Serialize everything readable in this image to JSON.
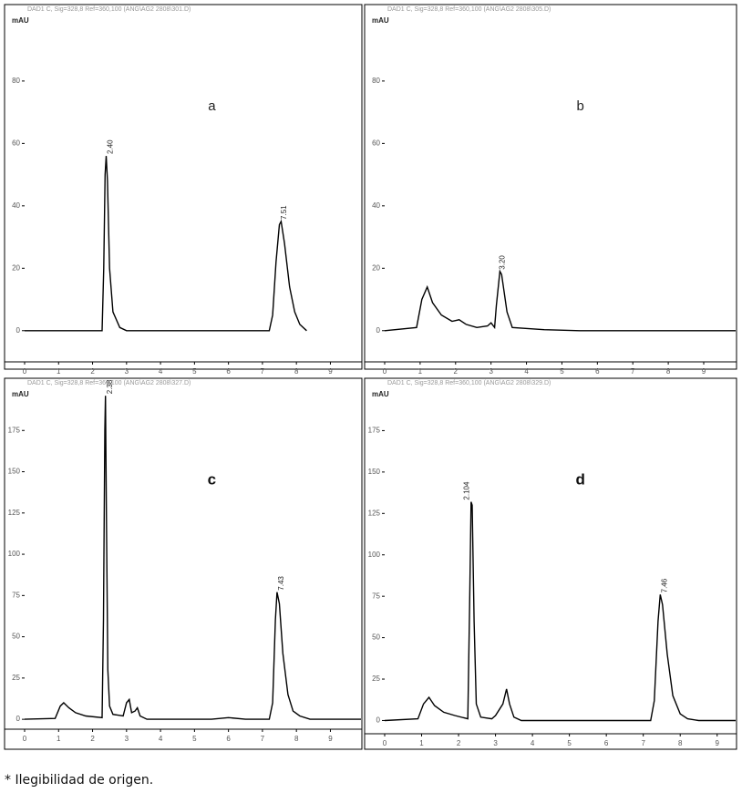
{
  "chart_data": [
    {
      "type": "line",
      "subtitle": "DAD1 C, Sig=328,8 Ref=360,100 (ANG\\AG2 2808\\301.D)",
      "label": "a",
      "ylabel": "mAU",
      "color": "#000000",
      "x": [
        0,
        2.28,
        2.33,
        2.37,
        2.4,
        2.44,
        2.5,
        2.6,
        2.8,
        3.0,
        7.2,
        7.3,
        7.4,
        7.5,
        7.55,
        7.65,
        7.8,
        7.95,
        8.1,
        8.3
      ],
      "values": [
        0,
        0,
        20,
        50,
        56,
        48,
        20,
        6,
        1,
        0,
        0,
        5,
        22,
        34,
        35,
        28,
        14,
        6,
        2,
        0
      ],
      "annotations": [
        {
          "x": 2.4,
          "label": "2.40"
        },
        {
          "x": 7.51,
          "label": "7.51"
        }
      ],
      "xlim": [
        0,
        9.9
      ],
      "ylim": [
        -10,
        101
      ],
      "xticks": [
        0,
        1,
        2,
        3,
        4,
        5,
        6,
        7,
        8,
        9
      ],
      "yticks": [
        0,
        20,
        40,
        60,
        80
      ]
    },
    {
      "type": "line",
      "subtitle": "DAD1 C, Sig=328,8 Ref=360,100 (ANG\\AG2 2808\\305.D)",
      "label": "b",
      "ylabel": "mAU",
      "color": "#000000",
      "x": [
        0,
        0.9,
        1.05,
        1.2,
        1.35,
        1.6,
        1.9,
        2.1,
        2.3,
        2.6,
        2.9,
        3.0,
        3.1,
        3.15,
        3.25,
        3.3,
        3.45,
        3.6,
        4.5,
        5.5,
        6.4,
        9.9
      ],
      "values": [
        0,
        1,
        10,
        14,
        9,
        5,
        3,
        3.5,
        2,
        1,
        1.5,
        2.5,
        1,
        8,
        19,
        18,
        6,
        1,
        0.3,
        0,
        0,
        0
      ],
      "annotations": [
        {
          "x": 3.2,
          "label": "3.20"
        }
      ],
      "xlim": [
        0,
        9.9
      ],
      "ylim": [
        -10,
        101
      ],
      "xticks": [
        0,
        1,
        2,
        3,
        4,
        5,
        6,
        7,
        8,
        9
      ],
      "yticks": [
        0,
        20,
        40,
        60,
        80
      ]
    },
    {
      "type": "line",
      "subtitle": "DAD1 C, Sig=328,8 Ref=360,100 (ANG\\AG2 2808\\327.D)",
      "label": "c",
      "ylabel": "mAU",
      "color": "#000000",
      "bold": true,
      "x": [
        0,
        0.9,
        1.05,
        1.15,
        1.3,
        1.5,
        1.8,
        2.28,
        2.32,
        2.36,
        2.38,
        2.41,
        2.45,
        2.5,
        2.6,
        2.9,
        3.0,
        3.08,
        3.15,
        3.25,
        3.32,
        3.4,
        3.6,
        5.5,
        6,
        6.5,
        7.2,
        7.3,
        7.38,
        7.43,
        7.5,
        7.6,
        7.75,
        7.9,
        8.1,
        8.4,
        9.9
      ],
      "values": [
        0,
        0.5,
        8,
        10,
        7,
        4,
        2,
        1,
        60,
        175,
        196,
        120,
        30,
        8,
        3,
        2,
        10,
        12,
        4,
        5,
        7,
        2,
        0,
        0,
        1,
        0,
        0,
        10,
        60,
        77,
        70,
        40,
        15,
        5,
        2,
        0,
        0
      ],
      "annotations": [
        {
          "x": 2.38,
          "label": "2.38"
        },
        {
          "x": 7.43,
          "label": "7.43"
        }
      ],
      "xlim": [
        0,
        9.9
      ],
      "ylim": [
        -6,
        200
      ],
      "xticks": [
        0,
        1,
        2,
        3,
        4,
        5,
        6,
        7,
        8,
        9
      ],
      "yticks": [
        0,
        25,
        50,
        75,
        100,
        125,
        150,
        175
      ]
    },
    {
      "type": "line",
      "subtitle": "DAD1 C, Sig=328,8 Ref=360,100 (ANG\\AG2 2808\\329.D)",
      "label": "d",
      "ylabel": "mAU",
      "color": "#000000",
      "bold": true,
      "x": [
        0,
        0.9,
        1.05,
        1.2,
        1.35,
        1.6,
        1.9,
        2.25,
        2.3,
        2.34,
        2.37,
        2.42,
        2.48,
        2.6,
        2.9,
        3.0,
        3.2,
        3.3,
        3.38,
        3.5,
        3.7,
        7.2,
        7.3,
        7.4,
        7.46,
        7.52,
        7.65,
        7.8,
        8.0,
        8.2,
        8.5,
        9.5
      ],
      "values": [
        0,
        1,
        10,
        14,
        9,
        5,
        3,
        1,
        70,
        132,
        130,
        60,
        10,
        2,
        1,
        3,
        10,
        19,
        10,
        2,
        0,
        0,
        12,
        60,
        76,
        70,
        40,
        15,
        4,
        1,
        0,
        0
      ],
      "annotations": [
        {
          "x": 2.104,
          "label": "2.104"
        },
        {
          "x": 7.46,
          "label": "7.46"
        }
      ],
      "xlim": [
        0,
        9.5
      ],
      "ylim": [
        -8,
        200
      ],
      "xticks": [
        0,
        1,
        2,
        3,
        4,
        5,
        6,
        7,
        8,
        9
      ],
      "yticks": [
        0,
        25,
        50,
        75,
        100,
        125,
        150,
        175
      ]
    }
  ],
  "note": "* Ilegibilidad de origen."
}
